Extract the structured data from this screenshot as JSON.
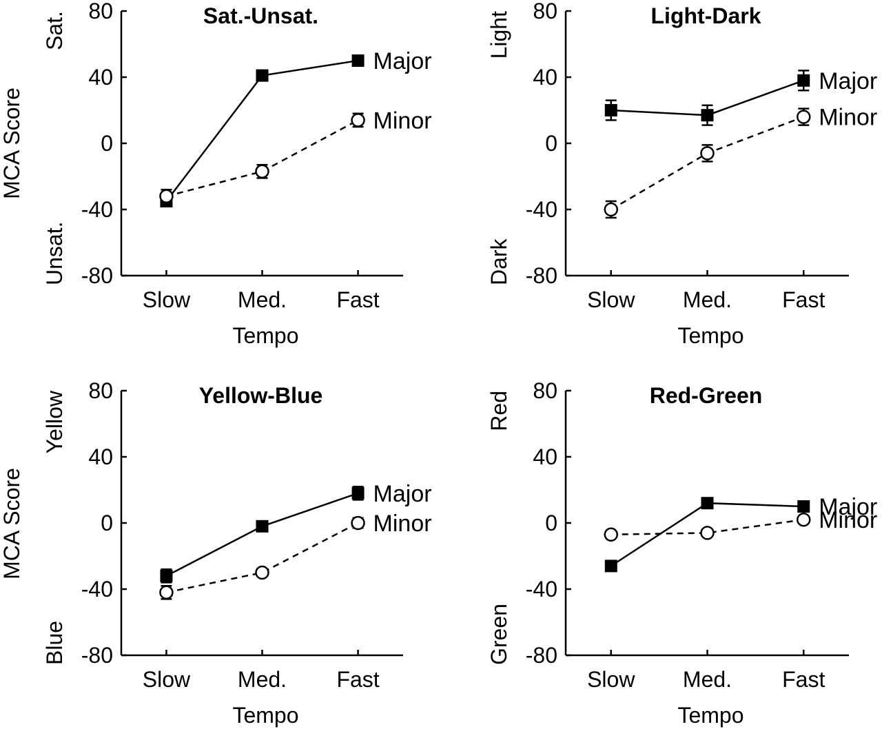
{
  "figure": {
    "ylabel_left": "MCA Score"
  },
  "chart_data": [
    {
      "type": "line",
      "title": "Sat.-Unsat.",
      "xlabel": "Tempo",
      "ylabel": "MCA Score",
      "pole_high": "Sat.",
      "pole_low": "Unsat.",
      "categories": [
        "Slow",
        "Med.",
        "Fast"
      ],
      "ylim": [
        -80,
        80
      ],
      "yticks": [
        "80",
        "40",
        "0",
        "-40",
        "-80"
      ],
      "series": [
        {
          "name": "Major",
          "style": "solid",
          "marker": "filled-square",
          "values": [
            -35,
            41,
            50
          ],
          "errors": [
            3,
            3,
            3
          ]
        },
        {
          "name": "Minor",
          "style": "dashed",
          "marker": "open-circle",
          "values": [
            -32,
            -17,
            14
          ],
          "errors": [
            4,
            4,
            4
          ]
        }
      ]
    },
    {
      "type": "line",
      "title": "Light-Dark",
      "xlabel": "Tempo",
      "ylabel": "",
      "pole_high": "Light",
      "pole_low": "Dark",
      "categories": [
        "Slow",
        "Med.",
        "Fast"
      ],
      "ylim": [
        -80,
        80
      ],
      "yticks": [
        "80",
        "40",
        "0",
        "-40",
        "-80"
      ],
      "series": [
        {
          "name": "Major",
          "style": "solid",
          "marker": "filled-square",
          "values": [
            20,
            17,
            38
          ],
          "errors": [
            6,
            6,
            6
          ]
        },
        {
          "name": "Minor",
          "style": "dashed",
          "marker": "open-circle",
          "values": [
            -40,
            -6,
            16
          ],
          "errors": [
            5,
            5,
            5
          ]
        }
      ]
    },
    {
      "type": "line",
      "title": "Yellow-Blue",
      "xlabel": "Tempo",
      "ylabel": "MCA Score",
      "pole_high": "Yellow",
      "pole_low": "Blue",
      "categories": [
        "Slow",
        "Med.",
        "Fast"
      ],
      "ylim": [
        -80,
        80
      ],
      "yticks": [
        "80",
        "40",
        "0",
        "-40",
        "-80"
      ],
      "series": [
        {
          "name": "Major",
          "style": "solid",
          "marker": "filled-square",
          "values": [
            -32,
            -2,
            18
          ],
          "errors": [
            4,
            3,
            4
          ]
        },
        {
          "name": "Minor",
          "style": "dashed",
          "marker": "open-circle",
          "values": [
            -42,
            -30,
            0
          ],
          "errors": [
            4,
            2,
            3
          ]
        }
      ]
    },
    {
      "type": "line",
      "title": "Red-Green",
      "xlabel": "Tempo",
      "ylabel": "",
      "pole_high": "Red",
      "pole_low": "Green",
      "categories": [
        "Slow",
        "Med.",
        "Fast"
      ],
      "ylim": [
        -80,
        80
      ],
      "yticks": [
        "80",
        "40",
        "0",
        "-40",
        "-80"
      ],
      "series": [
        {
          "name": "Major",
          "style": "solid",
          "marker": "filled-square",
          "values": [
            -26,
            12,
            10
          ],
          "errors": [
            2,
            2,
            2
          ]
        },
        {
          "name": "Minor",
          "style": "dashed",
          "marker": "open-circle",
          "values": [
            -7,
            -6,
            2
          ],
          "errors": [
            2,
            2,
            2
          ]
        }
      ]
    }
  ]
}
